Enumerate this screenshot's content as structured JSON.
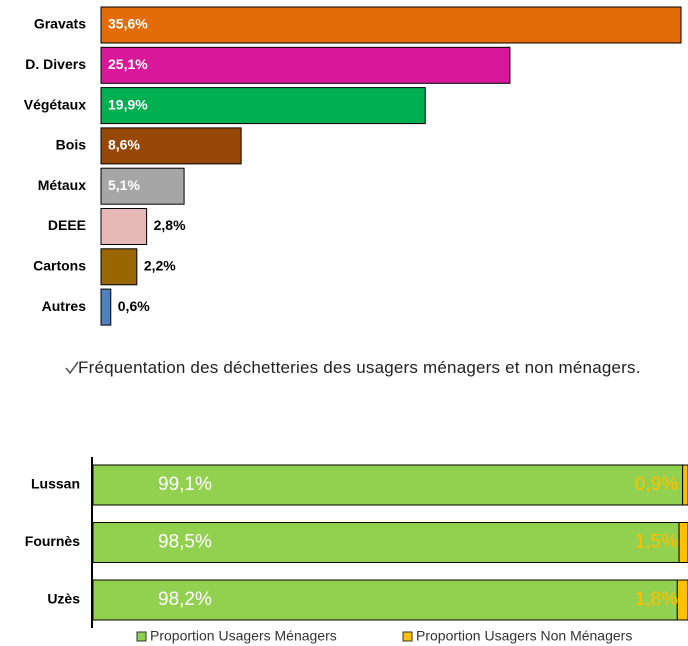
{
  "chart_data": [
    {
      "type": "hbar",
      "categories": [
        "Gravats",
        "D. Divers",
        "Végétaux",
        "Bois",
        "Métaux",
        "DEEE",
        "Cartons",
        "Autres"
      ],
      "values": [
        35.6,
        25.1,
        19.9,
        8.6,
        5.1,
        2.8,
        2.2,
        0.6
      ],
      "value_labels": [
        "35,6%",
        "25,1%",
        "19,9%",
        "8,6%",
        "5,1%",
        "2,8%",
        "2,2%",
        "0,6%"
      ],
      "colors": [
        "#e36c09",
        "#d9179b",
        "#00b050",
        "#984806",
        "#a6a6a6",
        "#e6b9b8",
        "#996600",
        "#4f81bd"
      ]
    },
    {
      "type": "stacked_hbar",
      "categories": [
        "Lussan",
        "Fournès",
        "Uzès"
      ],
      "series": [
        {
          "name": "Proportion Usagers Ménagers",
          "color": "#92d050",
          "values": [
            99.1,
            98.5,
            98.2
          ],
          "value_labels": [
            "99,1%",
            "98,5%",
            "98,2%"
          ]
        },
        {
          "name": "Proportion Usagers Non Ménagers",
          "color": "#ffc000",
          "values": [
            0.9,
            1.5,
            1.8
          ],
          "value_labels": [
            "0,9%",
            "1,5%",
            "1,8%"
          ]
        }
      ]
    }
  ],
  "paragraph": "Fréquentation des déchetteries des usagers ménagers et non ménagers."
}
